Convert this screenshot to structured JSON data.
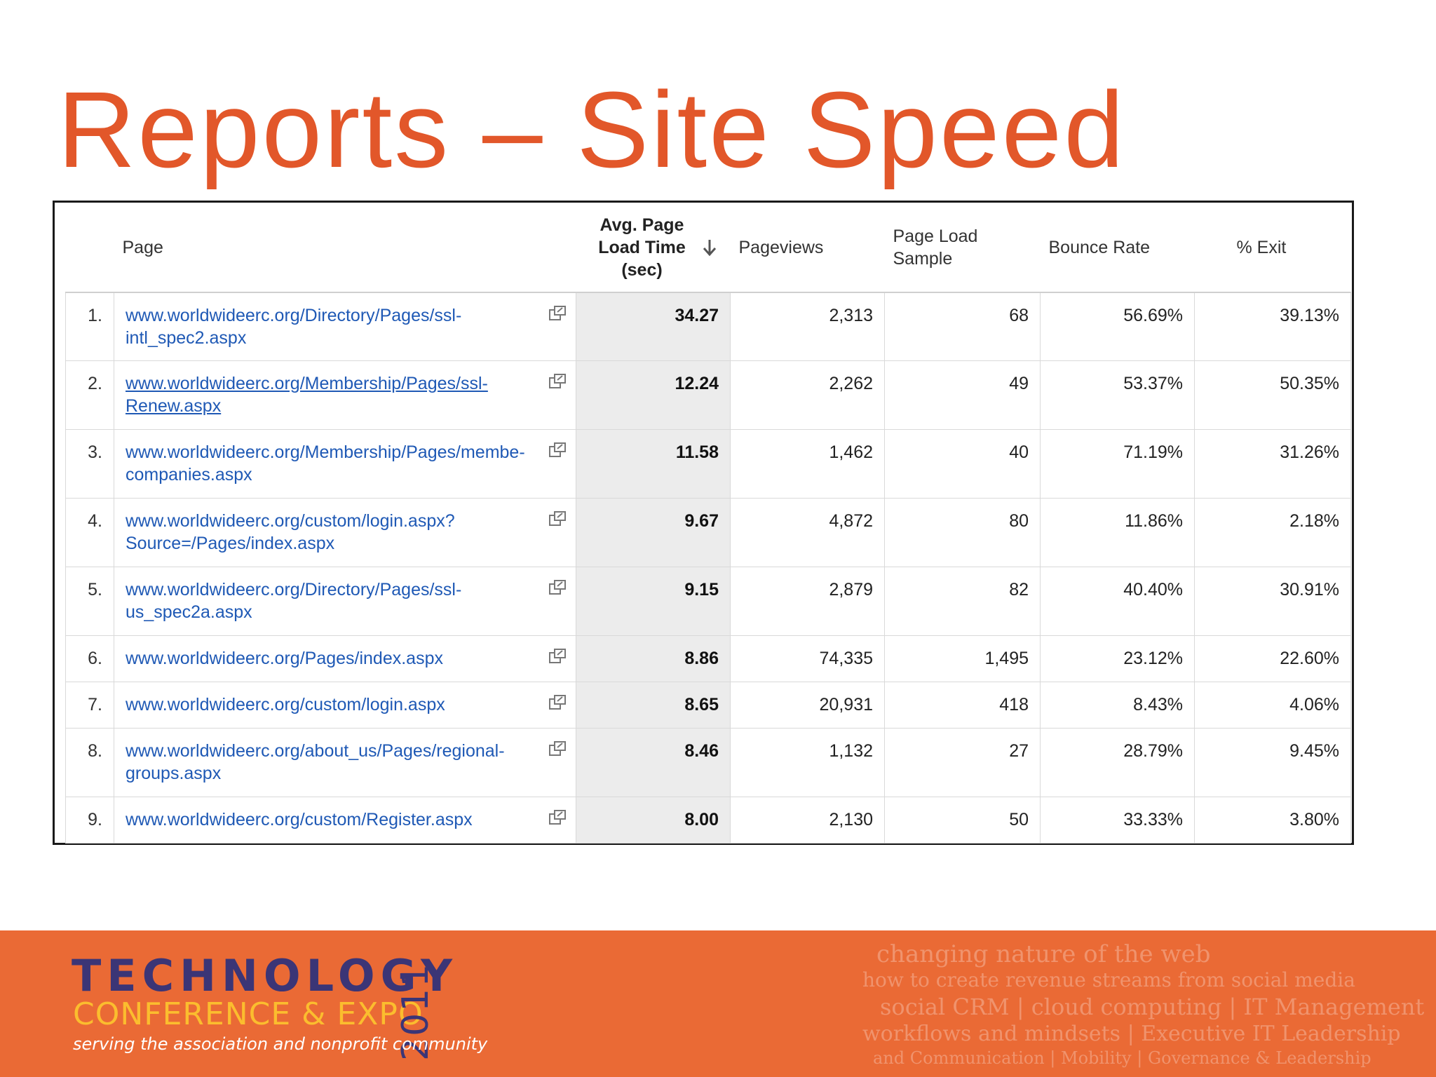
{
  "slide": {
    "title": "Reports – Site Speed"
  },
  "table": {
    "columns": {
      "page": "Page",
      "avg_load_time": "Avg. Page Load Time (sec)",
      "pageviews": "Pageviews",
      "load_sample": "Page Load Sample",
      "bounce_rate": "Bounce Rate",
      "exit": "% Exit"
    },
    "rows": [
      {
        "rank": "1.",
        "page": "www.worldwideerc.org/Directory/Pages/ssl-intl_spec2.aspx",
        "time": "34.27",
        "pageviews": "2,313",
        "sample": "68",
        "bounce": "56.69%",
        "exit": "39.13%"
      },
      {
        "rank": "2.",
        "page": "www.worldwideerc.org/Membership/Pages/ssl-Renew.aspx",
        "time": "12.24",
        "pageviews": "2,262",
        "sample": "49",
        "bounce": "53.37%",
        "exit": "50.35%"
      },
      {
        "rank": "3.",
        "page": "www.worldwideerc.org/Membership/Pages/membe-companies.aspx",
        "time": "11.58",
        "pageviews": "1,462",
        "sample": "40",
        "bounce": "71.19%",
        "exit": "31.26%"
      },
      {
        "rank": "4.",
        "page": "www.worldwideerc.org/custom/login.aspx?Source=/Pages/index.aspx",
        "time": "9.67",
        "pageviews": "4,872",
        "sample": "80",
        "bounce": "11.86%",
        "exit": "2.18%"
      },
      {
        "rank": "5.",
        "page": "www.worldwideerc.org/Directory/Pages/ssl-us_spec2a.aspx",
        "time": "9.15",
        "pageviews": "2,879",
        "sample": "82",
        "bounce": "40.40%",
        "exit": "30.91%"
      },
      {
        "rank": "6.",
        "page": "www.worldwideerc.org/Pages/index.aspx",
        "time": "8.86",
        "pageviews": "74,335",
        "sample": "1,495",
        "bounce": "23.12%",
        "exit": "22.60%"
      },
      {
        "rank": "7.",
        "page": "www.worldwideerc.org/custom/login.aspx",
        "time": "8.65",
        "pageviews": "20,931",
        "sample": "418",
        "bounce": "8.43%",
        "exit": "4.06%"
      },
      {
        "rank": "8.",
        "page": "www.worldwideerc.org/about_us/Pages/regional-groups.aspx",
        "time": "8.46",
        "pageviews": "1,132",
        "sample": "27",
        "bounce": "28.79%",
        "exit": "9.45%"
      },
      {
        "rank": "9.",
        "page": "www.worldwideerc.org/custom/Register.aspx",
        "time": "8.00",
        "pageviews": "2,130",
        "sample": "50",
        "bounce": "33.33%",
        "exit": "3.80%"
      }
    ]
  },
  "footer": {
    "logo_line1": "TECHNOLOGY",
    "logo_line2": "CONFERENCE & EXPO",
    "logo_year": "2011",
    "tagline": "serving the association and nonprofit community",
    "word_cloud": [
      "changing nature of the web",
      "how to create revenue streams from social media",
      "social CRM | cloud computing | IT Management",
      "workflows and mindsets | Executive IT Leadership",
      "and Communication | Mobility | Governance & Leadership"
    ]
  },
  "colors": {
    "title": "#e2572a",
    "link": "#1f59b5",
    "footer": "#ea6a35",
    "logo_primary": "#3b3576",
    "logo_secondary": "#fbbd2e"
  },
  "icons": {
    "sort": "arrow-down-icon",
    "external": "external-link-icon"
  }
}
